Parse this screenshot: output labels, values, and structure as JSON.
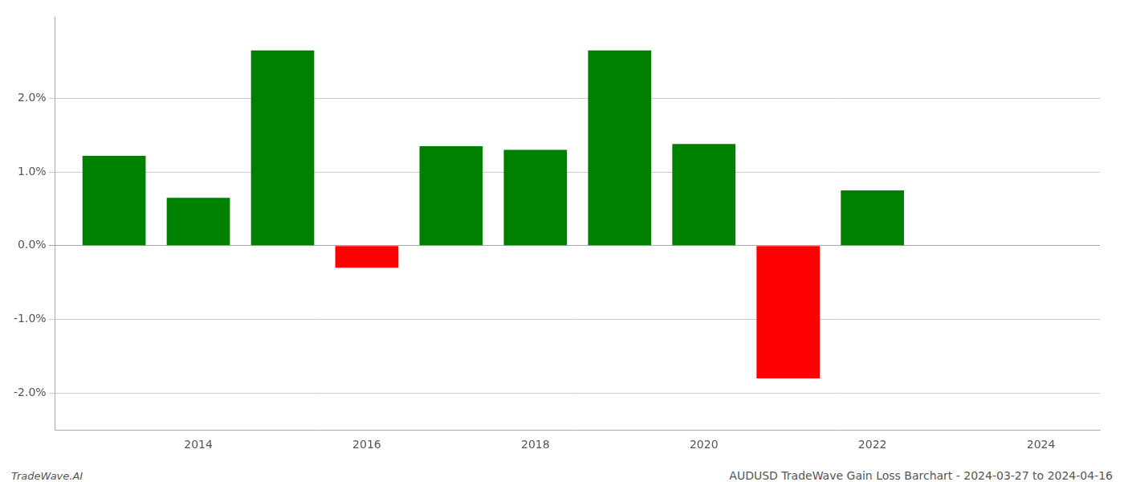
{
  "chart_data": {
    "type": "bar",
    "title": "AUDUSD TradeWave Gain Loss Barchart - 2024-03-27 to 2024-04-16",
    "annotations": [
      "TradeWave.AI"
    ],
    "x": [
      2013,
      2014,
      2015,
      2016,
      2017,
      2018,
      2019,
      2020,
      2021,
      2022,
      2023
    ],
    "values": [
      1.22,
      0.65,
      2.65,
      -0.3,
      1.35,
      1.3,
      2.65,
      1.38,
      -1.8,
      0.75,
      0.0
    ],
    "colors": [
      "#008000",
      "#008000",
      "#008000",
      "#ff0000",
      "#008000",
      "#008000",
      "#008000",
      "#008000",
      "#ff0000",
      "#008000",
      "#008000"
    ],
    "xlim": [
      2012.3,
      2024.7
    ],
    "xticks": [
      2014,
      2016,
      2018,
      2020,
      2022,
      2024
    ],
    "ylim": [
      -2.5,
      3.1
    ],
    "yticks": [
      {
        "value": -2.0,
        "label": "-2.0%"
      },
      {
        "value": -1.0,
        "label": "-1.0%"
      },
      {
        "value": 0.0,
        "label": "0.0%"
      },
      {
        "value": 1.0,
        "label": "1.0%"
      },
      {
        "value": 2.0,
        "label": "2.0%"
      }
    ],
    "grid": "y"
  }
}
